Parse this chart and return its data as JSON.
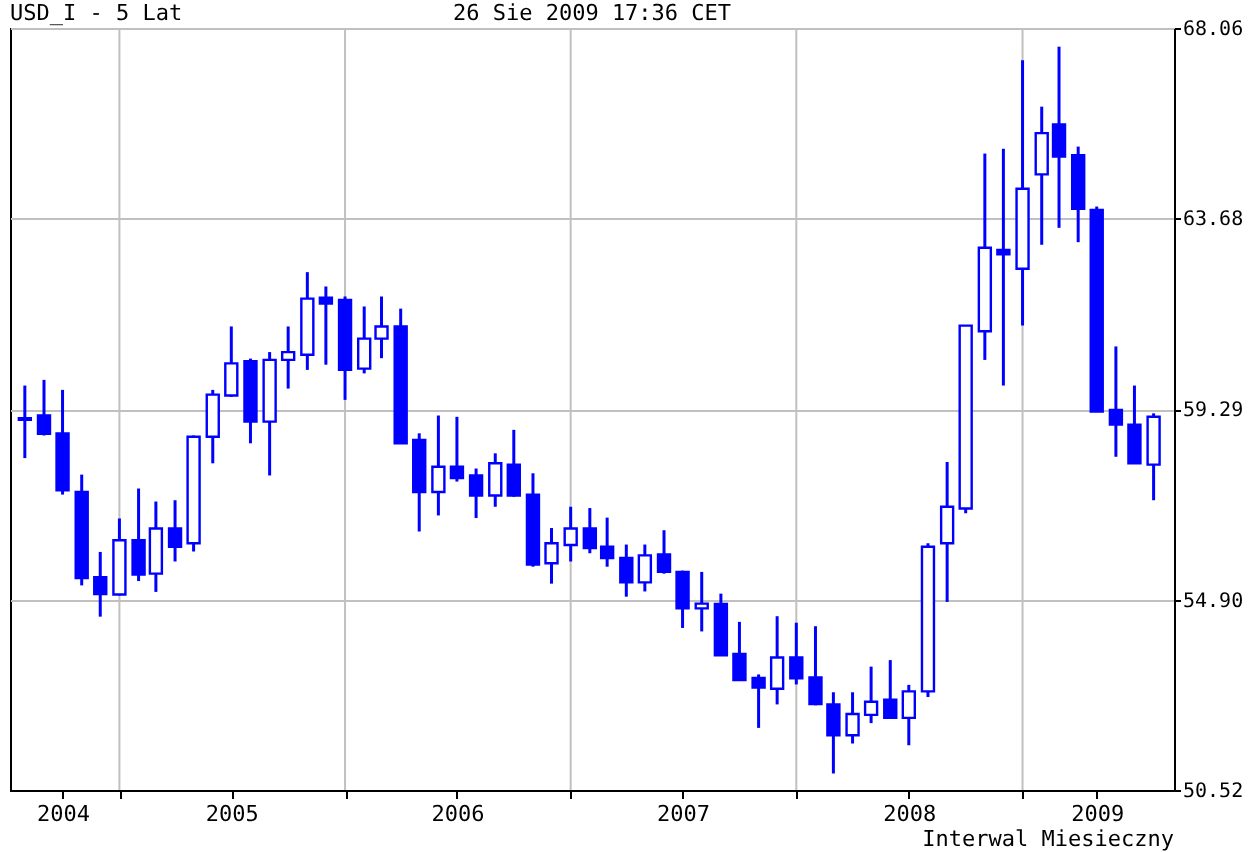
{
  "chart_data": {
    "type": "candlestick",
    "title": "USD_I - 5 Lat",
    "subtitle": "26 Sie 2009 17:36 CET",
    "annotations": [
      "Interwal Miesieczny"
    ],
    "x": [
      "2004-08",
      "2004-09",
      "2004-10",
      "2004-11",
      "2004-12",
      "2005-01",
      "2005-02",
      "2005-03",
      "2005-04",
      "2005-05",
      "2005-06",
      "2005-07",
      "2005-08",
      "2005-09",
      "2005-10",
      "2005-11",
      "2005-12",
      "2006-01",
      "2006-02",
      "2006-03",
      "2006-04",
      "2006-05",
      "2006-06",
      "2006-07",
      "2006-08",
      "2006-09",
      "2006-10",
      "2006-11",
      "2006-12",
      "2007-01",
      "2007-02",
      "2007-03",
      "2007-04",
      "2007-05",
      "2007-06",
      "2007-07",
      "2007-08",
      "2007-09",
      "2007-10",
      "2007-11",
      "2007-12",
      "2008-01",
      "2008-02",
      "2008-03",
      "2008-04",
      "2008-05",
      "2008-06",
      "2008-07",
      "2008-08",
      "2008-09",
      "2008-10",
      "2008-11",
      "2008-12",
      "2009-01",
      "2009-02",
      "2009-03",
      "2009-04",
      "2009-05",
      "2009-06",
      "2009-07",
      "2009-08"
    ],
    "series": [
      {
        "color": "#0000ff",
        "ohlc": [
          [
            59.04,
            59.83,
            58.16,
            59.08
          ],
          [
            59.14,
            59.96,
            58.68,
            58.72
          ],
          [
            58.73,
            59.73,
            57.32,
            57.42
          ],
          [
            57.38,
            57.78,
            55.23,
            55.4
          ],
          [
            55.42,
            56.0,
            54.51,
            55.03
          ],
          [
            55.02,
            56.77,
            55.0,
            56.27
          ],
          [
            56.27,
            57.46,
            55.33,
            55.48
          ],
          [
            55.5,
            57.16,
            55.08,
            56.54
          ],
          [
            56.54,
            57.19,
            55.78,
            56.12
          ],
          [
            56.2,
            58.68,
            56.01,
            58.65
          ],
          [
            58.65,
            59.73,
            58.04,
            59.62
          ],
          [
            59.6,
            61.19,
            59.57,
            60.34
          ],
          [
            60.39,
            60.45,
            58.5,
            59.0
          ],
          [
            59.0,
            60.6,
            57.76,
            60.42
          ],
          [
            60.42,
            61.19,
            59.76,
            60.6
          ],
          [
            60.54,
            62.44,
            60.19,
            61.83
          ],
          [
            61.85,
            62.11,
            60.31,
            61.72
          ],
          [
            61.8,
            61.88,
            59.5,
            60.19
          ],
          [
            60.22,
            61.65,
            60.11,
            60.91
          ],
          [
            60.91,
            61.88,
            60.46,
            61.19
          ],
          [
            61.19,
            61.6,
            58.5,
            58.5
          ],
          [
            58.58,
            58.73,
            56.47,
            57.38
          ],
          [
            57.38,
            59.14,
            56.84,
            57.96
          ],
          [
            57.96,
            59.11,
            57.62,
            57.7
          ],
          [
            57.76,
            57.92,
            56.78,
            57.3
          ],
          [
            57.3,
            58.27,
            57.04,
            58.04
          ],
          [
            58.01,
            58.81,
            57.27,
            57.3
          ],
          [
            57.32,
            57.81,
            55.66,
            55.71
          ],
          [
            55.74,
            56.55,
            55.27,
            56.2
          ],
          [
            56.16,
            57.04,
            55.78,
            56.54
          ],
          [
            56.54,
            57.01,
            55.97,
            56.09
          ],
          [
            56.12,
            56.79,
            55.66,
            55.86
          ],
          [
            55.86,
            56.17,
            54.97,
            55.3
          ],
          [
            55.3,
            56.17,
            55.09,
            55.92
          ],
          [
            55.94,
            56.5,
            55.5,
            55.54
          ],
          [
            55.54,
            55.57,
            54.25,
            54.7
          ],
          [
            54.7,
            55.54,
            54.17,
            54.81
          ],
          [
            54.8,
            55.04,
            53.62,
            53.62
          ],
          [
            53.65,
            54.39,
            53.05,
            53.05
          ],
          [
            53.1,
            53.18,
            51.95,
            52.88
          ],
          [
            52.85,
            54.52,
            52.49,
            53.57
          ],
          [
            53.57,
            54.37,
            52.95,
            53.09
          ],
          [
            53.11,
            54.29,
            52.47,
            52.5
          ],
          [
            52.49,
            52.77,
            50.9,
            51.78
          ],
          [
            51.78,
            52.77,
            51.59,
            52.27
          ],
          [
            52.25,
            53.36,
            52.06,
            52.55
          ],
          [
            52.6,
            53.51,
            52.16,
            52.18
          ],
          [
            52.18,
            52.94,
            51.55,
            52.79
          ],
          [
            52.79,
            56.2,
            52.66,
            56.12
          ],
          [
            56.2,
            58.07,
            54.85,
            57.04
          ],
          [
            57.0,
            61.21,
            56.89,
            61.21
          ],
          [
            61.08,
            65.17,
            60.42,
            63.0
          ],
          [
            62.95,
            65.28,
            59.83,
            62.85
          ],
          [
            62.52,
            67.32,
            61.21,
            64.36
          ],
          [
            64.69,
            66.25,
            63.07,
            65.64
          ],
          [
            65.84,
            67.63,
            63.46,
            65.1
          ],
          [
            65.13,
            65.33,
            63.13,
            63.9
          ],
          [
            63.87,
            63.95,
            59.23,
            59.23
          ],
          [
            59.27,
            60.73,
            58.19,
            58.93
          ],
          [
            58.93,
            59.83,
            58.04,
            58.04
          ],
          [
            58.01,
            59.19,
            57.19,
            59.11
          ]
        ]
      }
    ],
    "xlim": [
      "2004-07-08",
      "2009-09-03"
    ],
    "xticks": [
      {
        "value": "2005-01-01",
        "label": null
      },
      {
        "value": "2006-01-01",
        "label": null
      },
      {
        "value": "2007-01-01",
        "label": null
      },
      {
        "value": "2008-01-01",
        "label": null
      },
      {
        "value": "2009-01-01",
        "label": null
      },
      {
        "value": "2004-10-01",
        "label": "2004"
      },
      {
        "value": "2005-07-01",
        "label": "2005"
      },
      {
        "value": "2006-07-01",
        "label": "2006"
      },
      {
        "value": "2007-07-01",
        "label": "2007"
      },
      {
        "value": "2008-07-01",
        "label": "2008"
      },
      {
        "value": "2009-05-01",
        "label": "2009"
      }
    ],
    "ylim": [
      50.52,
      68.06
    ],
    "yticks": [
      {
        "value": 50.52,
        "label": "50.52"
      },
      {
        "value": 54.9,
        "label": "54.90"
      },
      {
        "value": 59.29,
        "label": "59.29"
      },
      {
        "value": 63.68,
        "label": "63.68"
      },
      {
        "value": 68.06,
        "label": "68.06"
      }
    ],
    "grid": true
  }
}
